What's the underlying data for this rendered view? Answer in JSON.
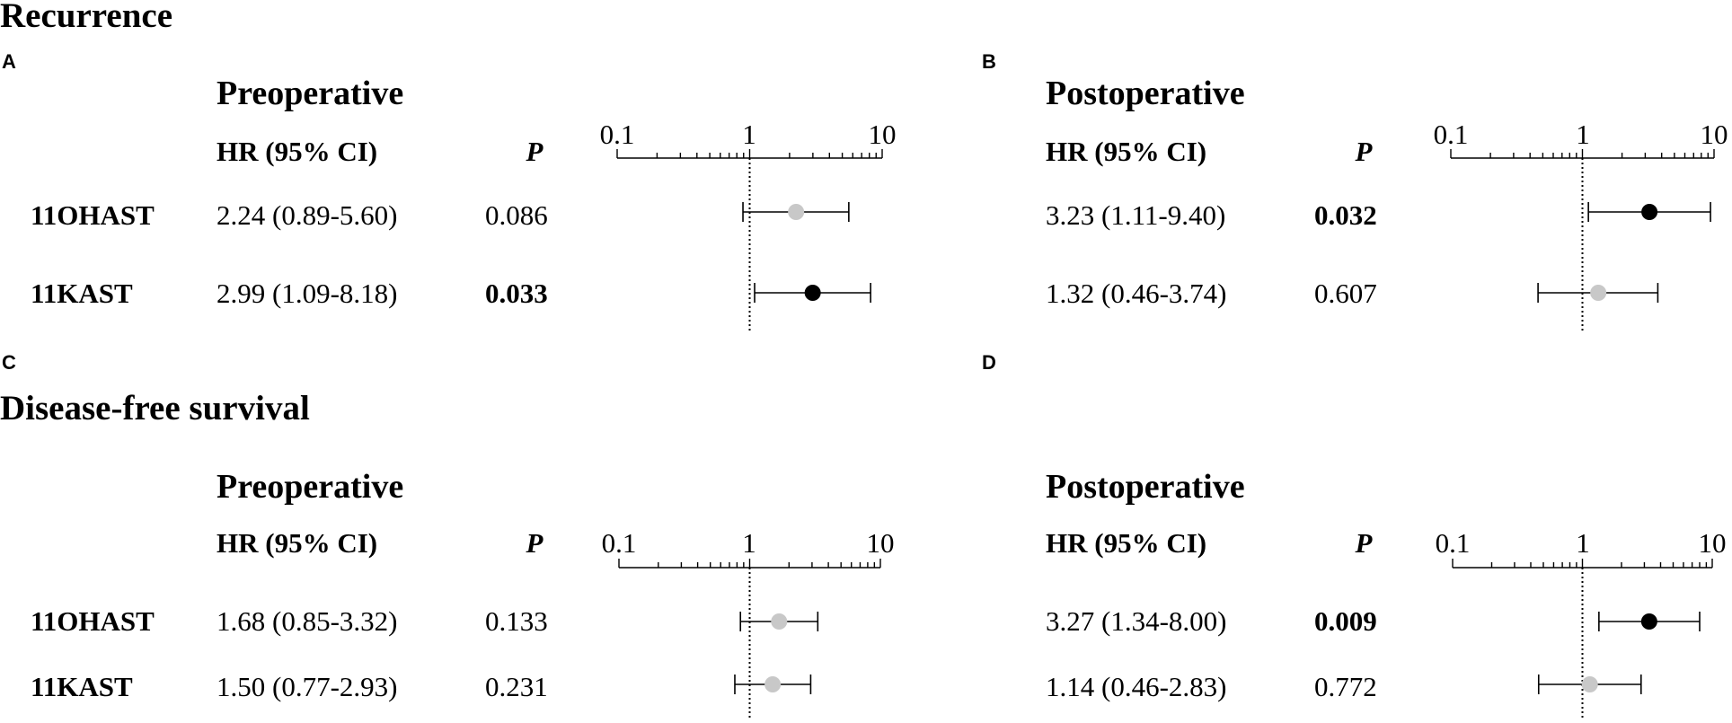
{
  "sections": [
    {
      "title": "Recurrence"
    },
    {
      "title": "Disease-free survival"
    }
  ],
  "table_headers": {
    "hr": "HR (95% CI)",
    "p": "P"
  },
  "chart_data": [
    {
      "type": "forest",
      "panel": "A",
      "title": "Preoperative",
      "x_scale": "log",
      "xlim": [
        0.1,
        10
      ],
      "ticks": [
        "0.1",
        "1",
        "10"
      ],
      "reference_line": 1,
      "rows": [
        {
          "label": "11OHAST",
          "hr": 2.24,
          "lower": 0.89,
          "upper": 5.6,
          "hr_text": "2.24 (0.89-5.60)",
          "p": "0.086",
          "significant": false,
          "color": "#c8c8c8"
        },
        {
          "label": "11KAST",
          "hr": 2.99,
          "lower": 1.09,
          "upper": 8.18,
          "hr_text": "2.99 (1.09-8.18)",
          "p": "0.033",
          "significant": true,
          "color": "#000000"
        }
      ]
    },
    {
      "type": "forest",
      "panel": "B",
      "title": "Postoperative",
      "x_scale": "log",
      "xlim": [
        0.1,
        10
      ],
      "ticks": [
        "0.1",
        "1",
        "10"
      ],
      "reference_line": 1,
      "rows": [
        {
          "label": "11OHAST",
          "hr": 3.23,
          "lower": 1.11,
          "upper": 9.4,
          "hr_text": "3.23 (1.11-9.40)",
          "p": "0.032",
          "significant": true,
          "color": "#000000"
        },
        {
          "label": "11KAST",
          "hr": 1.32,
          "lower": 0.46,
          "upper": 3.74,
          "hr_text": "1.32 (0.46-3.74)",
          "p": "0.607",
          "significant": false,
          "color": "#c8c8c8"
        }
      ]
    },
    {
      "type": "forest",
      "panel": "C",
      "title": "Preoperative",
      "x_scale": "log",
      "xlim": [
        0.1,
        10
      ],
      "ticks": [
        "0.1",
        "1",
        "10"
      ],
      "reference_line": 1,
      "rows": [
        {
          "label": "11OHAST",
          "hr": 1.68,
          "lower": 0.85,
          "upper": 3.32,
          "hr_text": "1.68 (0.85-3.32)",
          "p": "0.133",
          "significant": false,
          "color": "#c8c8c8"
        },
        {
          "label": "11KAST",
          "hr": 1.5,
          "lower": 0.77,
          "upper": 2.93,
          "hr_text": "1.50 (0.77-2.93)",
          "p": "0.231",
          "significant": false,
          "color": "#c8c8c8"
        }
      ]
    },
    {
      "type": "forest",
      "panel": "D",
      "title": "Postoperative",
      "x_scale": "log",
      "xlim": [
        0.1,
        10
      ],
      "ticks": [
        "0.1",
        "1",
        "10"
      ],
      "reference_line": 1,
      "rows": [
        {
          "label": "11OHAST",
          "hr": 3.27,
          "lower": 1.34,
          "upper": 8.0,
          "hr_text": "3.27 (1.34-8.00)",
          "p": "0.009",
          "significant": true,
          "color": "#000000"
        },
        {
          "label": "11KAST",
          "hr": 1.14,
          "lower": 0.46,
          "upper": 2.83,
          "hr_text": "1.14 (0.46-2.83)",
          "p": "0.772",
          "significant": false,
          "color": "#c8c8c8"
        }
      ]
    }
  ]
}
